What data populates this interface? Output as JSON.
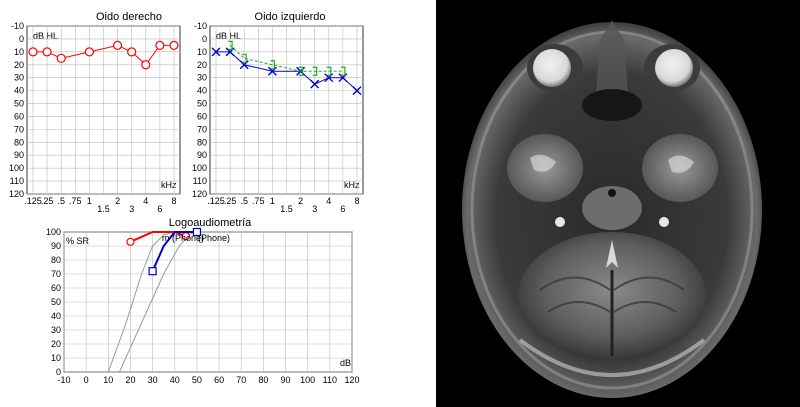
{
  "chart_data": [
    {
      "id": "right",
      "type": "line",
      "title": "Oido derecho",
      "ylabel": "dB HL",
      "xlabel": "kHz",
      "y_ticks": [
        -10,
        0,
        10,
        20,
        30,
        40,
        50,
        60,
        70,
        80,
        90,
        100,
        110,
        120
      ],
      "ylim": [
        -10,
        120
      ],
      "y_reversed": true,
      "x_ticks": [
        ".125",
        ".25",
        ".5",
        ".75",
        "1",
        "1.5",
        "2",
        "3",
        "4",
        "6",
        "8"
      ],
      "grid": true,
      "series": [
        {
          "color": "#ff0000",
          "marker": "circle",
          "x": [
            ".125",
            ".25",
            ".5",
            "1",
            "2",
            "3",
            "4",
            "6",
            "8"
          ],
          "y": [
            10,
            10,
            15,
            10,
            5,
            10,
            20,
            5,
            5
          ]
        }
      ]
    },
    {
      "id": "left",
      "type": "line",
      "title": "Oido izquierdo",
      "ylabel": "dB HL",
      "xlabel": "kHz",
      "y_ticks": [
        -10,
        0,
        10,
        20,
        30,
        40,
        50,
        60,
        70,
        80,
        90,
        100,
        110,
        120
      ],
      "ylim": [
        -10,
        120
      ],
      "y_reversed": true,
      "x_ticks": [
        ".125",
        ".25",
        ".5",
        ".75",
        "1",
        "1.5",
        "2",
        "3",
        "4",
        "6",
        "8"
      ],
      "grid": true,
      "series": [
        {
          "color": "#0000cc",
          "marker": "x",
          "x": [
            ".125",
            ".25",
            ".5",
            "1",
            "2",
            "3",
            "4",
            "6",
            "8"
          ],
          "y": [
            10,
            10,
            20,
            25,
            25,
            35,
            30,
            30,
            40
          ]
        },
        {
          "color": "#22aa22",
          "marker": "]",
          "dashed": true,
          "x": [
            ".25",
            ".5",
            "1",
            "2",
            "3",
            "4",
            "6"
          ],
          "y": [
            5,
            15,
            20,
            25,
            25,
            25,
            25
          ]
        }
      ]
    },
    {
      "id": "speech",
      "type": "line",
      "title": "Logoaudiometría",
      "ylabel": "% SR",
      "xlabel": "dB",
      "x_ticks": [
        -10,
        0,
        10,
        20,
        30,
        40,
        50,
        60,
        70,
        80,
        90,
        100,
        110,
        120
      ],
      "xlim": [
        -10,
        120
      ],
      "y_ticks": [
        0,
        10,
        20,
        30,
        40,
        50,
        60,
        70,
        80,
        90,
        100
      ],
      "ylim": [
        0,
        100
      ],
      "grid": true,
      "legend_labels": [
        "m (Phone)",
        "(Phone)"
      ],
      "reference_curves": [
        {
          "color": "#999999",
          "x": [
            10,
            18,
            25,
            30,
            35,
            40
          ],
          "y": [
            0,
            35,
            70,
            90,
            98,
            100
          ]
        },
        {
          "color": "#999999",
          "x": [
            15,
            25,
            35,
            42,
            48
          ],
          "y": [
            0,
            35,
            70,
            90,
            100
          ]
        }
      ],
      "series": [
        {
          "color": "#ff0000",
          "marker": "circle",
          "x": [
            20,
            30,
            40,
            45
          ],
          "y": [
            93,
            100,
            100,
            97
          ]
        },
        {
          "color": "#0000cc",
          "marker": "square",
          "x": [
            30,
            35,
            40,
            50
          ],
          "y": [
            72,
            90,
            100,
            100
          ]
        }
      ]
    }
  ],
  "image": {
    "type": "axial T2 brain MRI"
  }
}
